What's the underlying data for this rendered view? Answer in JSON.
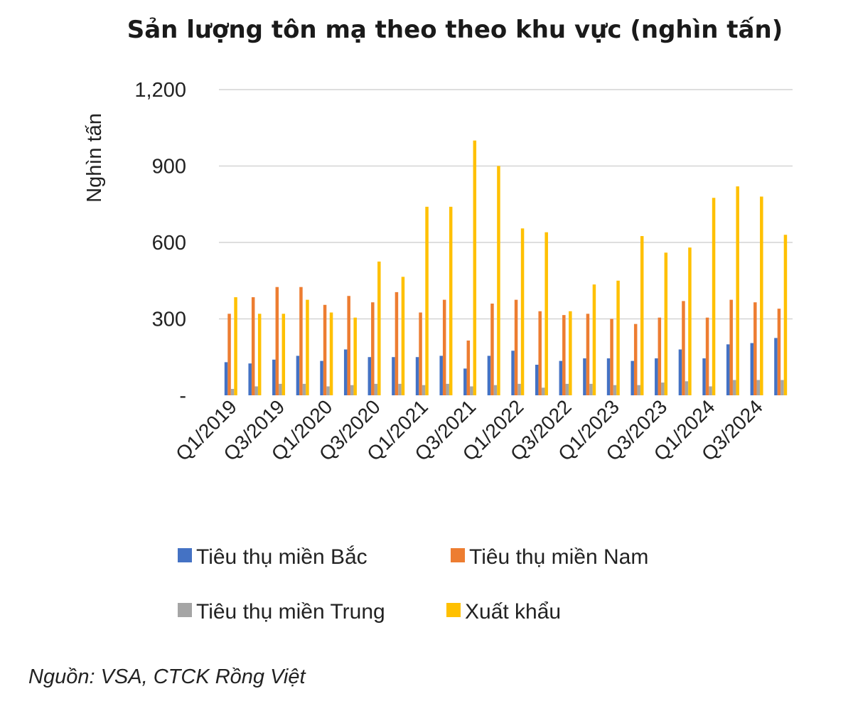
{
  "chart_data": {
    "type": "bar",
    "title": "Sản lượng tôn mạ theo theo khu vực (nghìn tấn)",
    "ylabel": "Nghìn tấn",
    "xlabel": "",
    "ylim": [
      0,
      1200
    ],
    "yticks": [
      0,
      300,
      600,
      900,
      1200
    ],
    "ytick_labels": [
      "-",
      "300",
      "600",
      "900",
      "1,200"
    ],
    "grid": true,
    "legend_position": "bottom",
    "categories": [
      "Q1/2019",
      "Q2/2019",
      "Q3/2019",
      "Q4/2019",
      "Q1/2020",
      "Q2/2020",
      "Q3/2020",
      "Q4/2020",
      "Q1/2021",
      "Q2/2021",
      "Q3/2021",
      "Q4/2021",
      "Q1/2022",
      "Q2/2022",
      "Q3/2022",
      "Q4/2022",
      "Q1/2023",
      "Q2/2023",
      "Q3/2023",
      "Q4/2023",
      "Q1/2024",
      "Q2/2024",
      "Q3/2024",
      "Q4/2024"
    ],
    "shown_tick_labels": [
      "Q1/2019",
      "Q3/2019",
      "Q1/2020",
      "Q3/2020",
      "Q1/2021",
      "Q3/2021",
      "Q1/2022",
      "Q3/2022",
      "Q1/2023",
      "Q3/2023",
      "Q1/2024",
      "Q3/2024"
    ],
    "series": [
      {
        "name": "Tiêu thụ miền Bắc",
        "color": "#4472c4",
        "values": [
          130,
          125,
          140,
          155,
          135,
          180,
          150,
          150,
          150,
          155,
          105,
          155,
          175,
          120,
          135,
          145,
          145,
          135,
          145,
          180,
          145,
          200,
          205,
          225
        ]
      },
      {
        "name": "Tiêu thụ miền Nam",
        "color": "#ed7d31",
        "values": [
          320,
          385,
          425,
          425,
          355,
          390,
          365,
          405,
          325,
          375,
          215,
          360,
          375,
          330,
          315,
          320,
          300,
          280,
          305,
          370,
          305,
          375,
          365,
          340
        ]
      },
      {
        "name": "Tiêu thụ miền Trung",
        "color": "#a5a5a5",
        "values": [
          25,
          35,
          45,
          45,
          35,
          40,
          45,
          45,
          40,
          45,
          35,
          40,
          45,
          30,
          45,
          45,
          40,
          40,
          50,
          55,
          35,
          60,
          60,
          60
        ]
      },
      {
        "name": "Xuất khẩu",
        "color": "#ffc000",
        "values": [
          385,
          320,
          320,
          375,
          325,
          305,
          525,
          465,
          740,
          740,
          1000,
          900,
          655,
          640,
          330,
          435,
          450,
          625,
          560,
          580,
          775,
          820,
          780,
          630
        ]
      }
    ]
  },
  "legend": {
    "row1": [
      {
        "label": "Tiêu thụ miền Bắc",
        "color": "#4472c4"
      },
      {
        "label": "Tiêu thụ miền Nam",
        "color": "#ed7d31"
      }
    ],
    "row2": [
      {
        "label": "Tiêu thụ miền Trung",
        "color": "#a5a5a5"
      },
      {
        "label": "Xuất khẩu",
        "color": "#ffc000"
      }
    ]
  },
  "source_note": "Nguồn: VSA, CTCK Rồng Việt"
}
